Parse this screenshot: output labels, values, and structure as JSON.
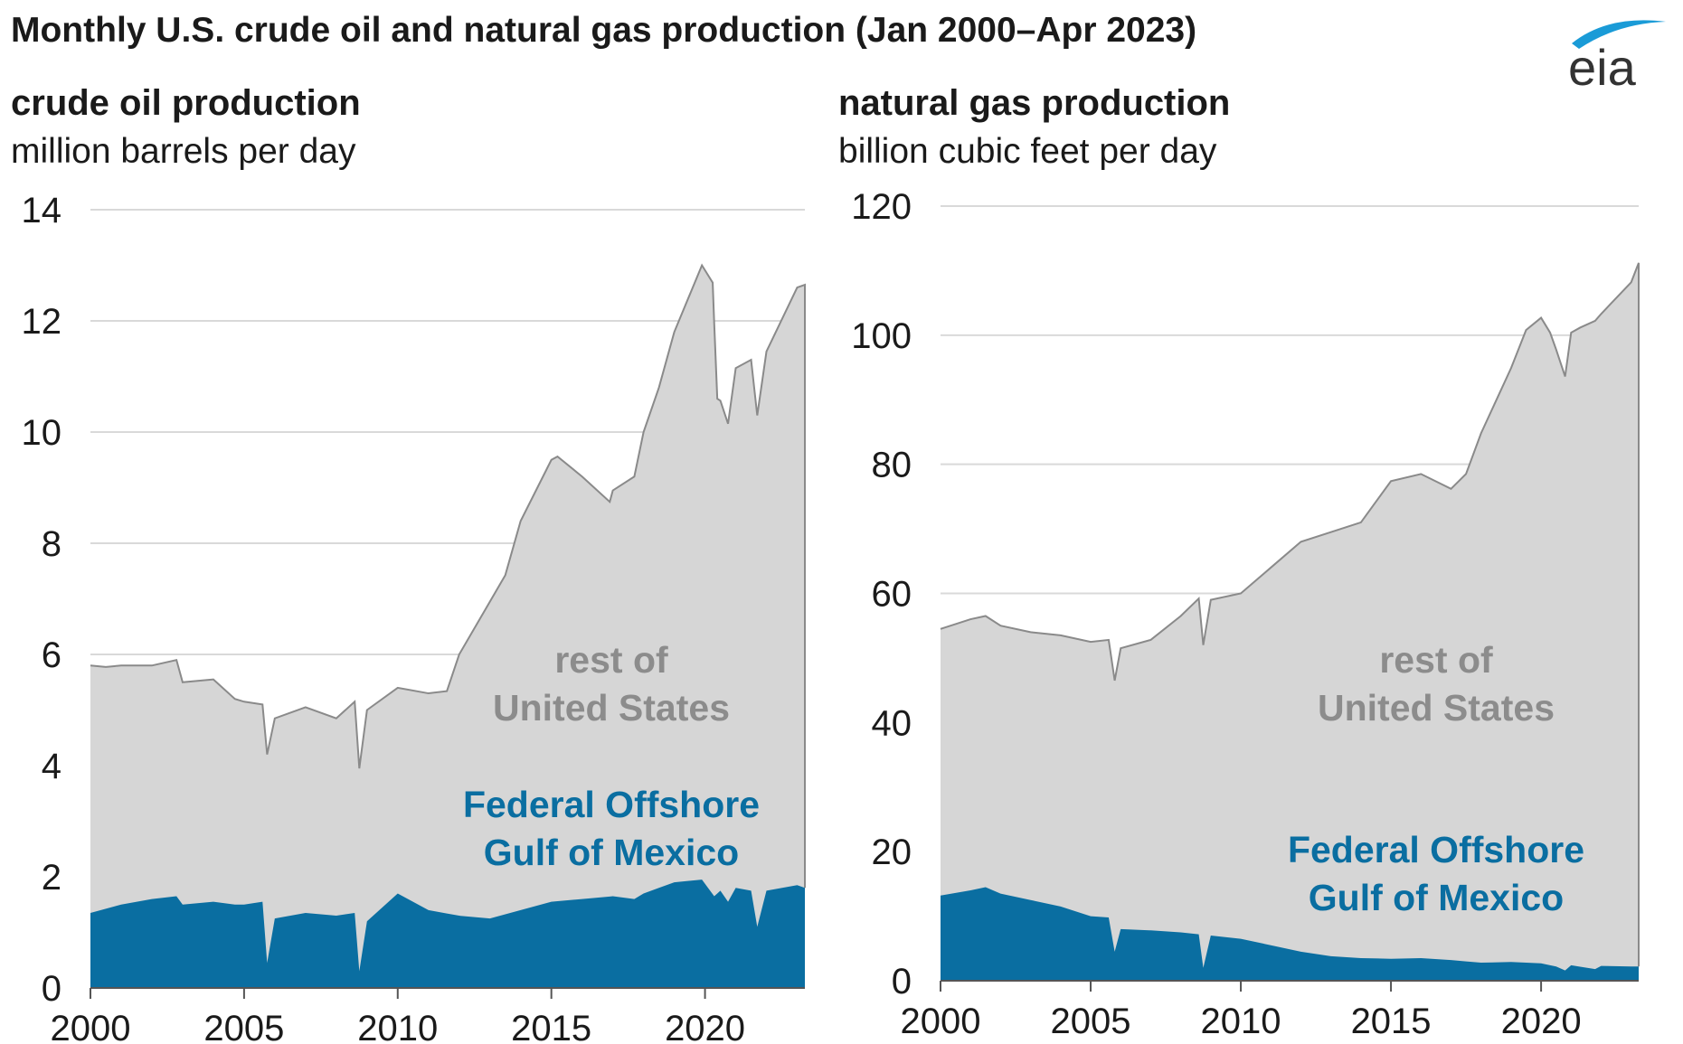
{
  "title": "Monthly U.S. crude oil and natural gas production (Jan 2000–Apr 2023)",
  "logo_text": "eia",
  "colors": {
    "rest_of_us": "#d6d6d6",
    "rest_of_us_line": "#8a8a8a",
    "gulf": "#0a6ea1",
    "grid": "#d9d9d9",
    "axis": "#555555"
  },
  "chart_data": [
    {
      "type": "area",
      "stacked": true,
      "title": "crude oil production",
      "ylabel": "million barrels per day",
      "xlim": [
        2000,
        2023.25
      ],
      "ylim": [
        0,
        14
      ],
      "x_ticks": [
        "2000",
        "2005",
        "2010",
        "2015",
        "2020"
      ],
      "y_ticks": [
        "0",
        "2",
        "4",
        "6",
        "8",
        "10",
        "12",
        "14"
      ],
      "grid": true,
      "annotations": {
        "rest": [
          "rest of",
          "United States"
        ],
        "gulf": [
          "Federal Offshore",
          "Gulf of Mexico"
        ]
      },
      "series": [
        {
          "name": "Federal Offshore Gulf of Mexico",
          "x": [
            2000.0,
            2001.0,
            2002.0,
            2002.8,
            2003.0,
            2004.0,
            2004.7,
            2005.0,
            2005.6,
            2005.75,
            2006.0,
            2007.0,
            2008.0,
            2008.6,
            2008.75,
            2009.0,
            2010.0,
            2011.0,
            2012.0,
            2013.0,
            2014.0,
            2015.0,
            2016.0,
            2017.0,
            2017.7,
            2018.0,
            2019.0,
            2019.9,
            2020.3,
            2020.5,
            2020.75,
            2021.0,
            2021.5,
            2021.7,
            2022.0,
            2023.0,
            2023.25
          ],
          "values": [
            1.35,
            1.5,
            1.6,
            1.65,
            1.5,
            1.55,
            1.5,
            1.5,
            1.55,
            0.45,
            1.25,
            1.35,
            1.3,
            1.35,
            0.3,
            1.2,
            1.7,
            1.4,
            1.3,
            1.25,
            1.4,
            1.55,
            1.6,
            1.65,
            1.6,
            1.7,
            1.9,
            1.95,
            1.65,
            1.75,
            1.55,
            1.8,
            1.75,
            1.1,
            1.75,
            1.85,
            1.8
          ]
        },
        {
          "name": "rest of United States",
          "x": [
            2000.0,
            2000.5,
            2001.0,
            2002.0,
            2002.8,
            2003.0,
            2004.0,
            2004.7,
            2005.0,
            2005.6,
            2005.75,
            2006.0,
            2007.0,
            2008.0,
            2008.6,
            2008.75,
            2009.0,
            2010.0,
            2011.0,
            2011.6,
            2012.0,
            2013.0,
            2013.5,
            2014.0,
            2015.0,
            2015.2,
            2016.0,
            2016.9,
            2017.0,
            2017.7,
            2018.0,
            2018.5,
            2019.0,
            2019.9,
            2020.25,
            2020.4,
            2020.75,
            2021.0,
            2021.5,
            2021.7,
            2022.0,
            2023.0,
            2023.25
          ],
          "values": [
            4.45,
            4.35,
            4.3,
            4.2,
            4.25,
            4.0,
            4.0,
            3.7,
            3.65,
            3.55,
            3.75,
            3.6,
            3.7,
            3.55,
            3.8,
            3.65,
            3.8,
            3.7,
            3.9,
            4.0,
            4.7,
            5.7,
            6.1,
            7.0,
            7.95,
            8.0,
            7.6,
            7.1,
            7.3,
            7.6,
            8.3,
            9.0,
            9.9,
            11.05,
            11.0,
            8.9,
            8.6,
            9.35,
            9.55,
            9.2,
            9.7,
            10.75,
            10.85
          ]
        }
      ]
    },
    {
      "type": "area",
      "stacked": true,
      "title": "natural gas production",
      "ylabel": "billion cubic feet per day",
      "xlim": [
        2000,
        2023.25
      ],
      "ylim": [
        0,
        120
      ],
      "x_ticks": [
        "2000",
        "2005",
        "2010",
        "2015",
        "2020"
      ],
      "y_ticks": [
        "0",
        "20",
        "40",
        "60",
        "80",
        "100",
        "120"
      ],
      "grid": true,
      "annotations": {
        "rest": [
          "rest of",
          "United States"
        ],
        "gulf": [
          "Federal Offshore",
          "Gulf of Mexico"
        ]
      },
      "series": [
        {
          "name": "Federal Offshore Gulf of Mexico",
          "x": [
            2000.0,
            2001.0,
            2001.5,
            2002.0,
            2003.0,
            2004.0,
            2005.0,
            2005.6,
            2005.8,
            2006.0,
            2007.0,
            2008.0,
            2008.6,
            2008.75,
            2009.0,
            2010.0,
            2011.0,
            2012.0,
            2013.0,
            2014.0,
            2015.0,
            2016.0,
            2017.0,
            2018.0,
            2019.0,
            2020.0,
            2020.5,
            2020.8,
            2021.0,
            2021.8,
            2022.0,
            2023.0,
            2023.25
          ],
          "values": [
            13.2,
            14.0,
            14.5,
            13.5,
            12.5,
            11.5,
            10.0,
            9.8,
            4.5,
            8.0,
            7.8,
            7.5,
            7.2,
            2.0,
            7.0,
            6.5,
            5.5,
            4.5,
            3.8,
            3.5,
            3.4,
            3.5,
            3.2,
            2.8,
            2.9,
            2.7,
            2.2,
            1.6,
            2.4,
            1.8,
            2.3,
            2.2,
            2.2
          ]
        },
        {
          "name": "rest of United States",
          "x": [
            2000.0,
            2001.0,
            2001.5,
            2002.0,
            2003.0,
            2004.0,
            2005.0,
            2005.6,
            2005.8,
            2006.0,
            2007.0,
            2008.0,
            2008.6,
            2008.75,
            2009.0,
            2010.0,
            2011.0,
            2012.0,
            2013.0,
            2014.0,
            2015.0,
            2016.0,
            2017.0,
            2017.5,
            2018.0,
            2019.0,
            2019.5,
            2020.0,
            2020.3,
            2020.8,
            2021.0,
            2021.3,
            2022.0,
            2023.0,
            2023.25
          ],
          "values": [
            41.3,
            42.0,
            42.0,
            41.5,
            41.5,
            42.0,
            42.5,
            43.0,
            42.0,
            43.5,
            45.0,
            49.0,
            52.0,
            50.0,
            52.0,
            53.5,
            58.5,
            63.5,
            65.7,
            67.5,
            74.0,
            75.0,
            73.0,
            75.5,
            82.0,
            92.0,
            98.0,
            100.0,
            98.0,
            92.0,
            98.0,
            99.0,
            101.0,
            106.0,
            109.0
          ]
        }
      ]
    }
  ]
}
